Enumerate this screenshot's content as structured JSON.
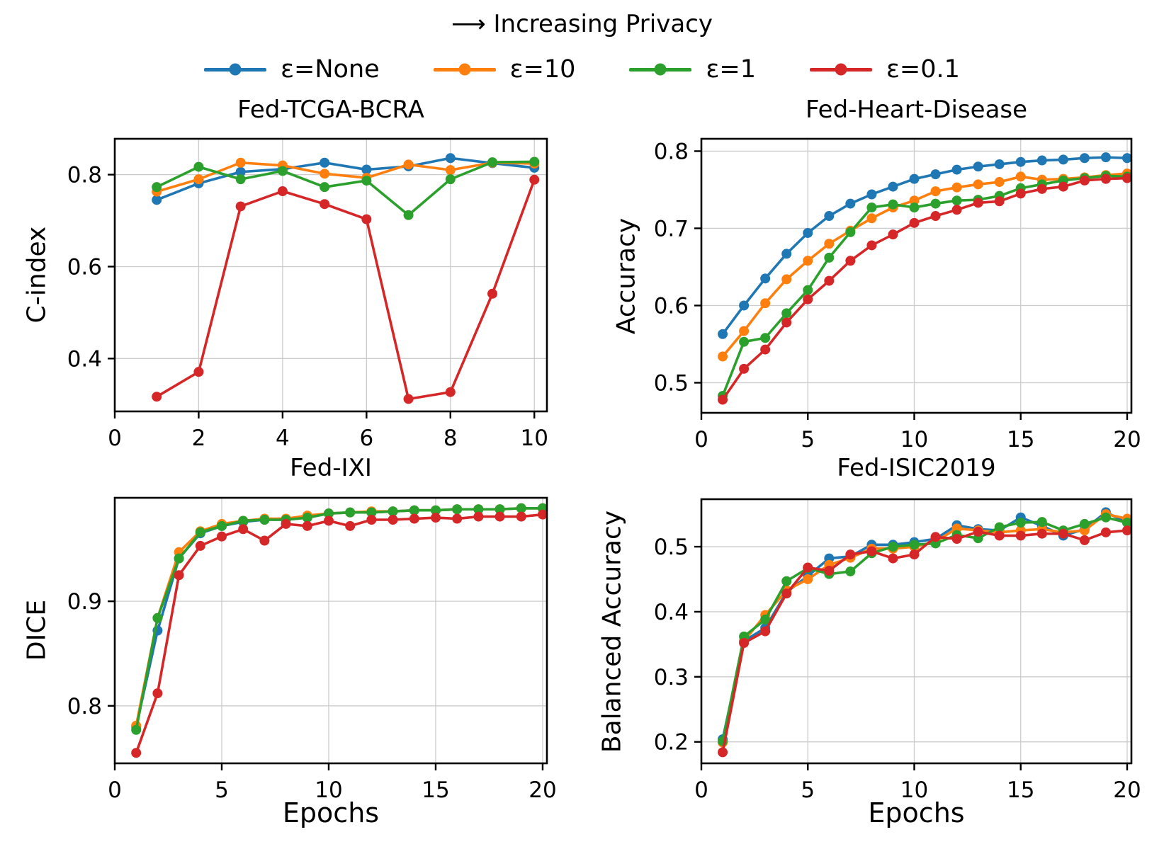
{
  "figure": {
    "header_title": "⟶ Increasing Privacy",
    "legend": [
      {
        "label": "ε=None",
        "color": "#1f77b4"
      },
      {
        "label": "ε=10",
        "color": "#ff7f0e"
      },
      {
        "label": "ε=1",
        "color": "#2ca02c"
      },
      {
        "label": "ε=0.1",
        "color": "#d62728"
      }
    ],
    "grid_color": "#cccccc",
    "spine_color": "#000000",
    "background": "#ffffff"
  },
  "chart_data": [
    {
      "type": "line",
      "title": "Fed-TCGA-BCRA",
      "xlabel": "",
      "ylabel": "C-index",
      "x": [
        1,
        2,
        3,
        4,
        5,
        6,
        7,
        8,
        9,
        10
      ],
      "xticks": [
        0,
        2,
        4,
        6,
        8,
        10
      ],
      "yticks": [
        0.4,
        0.6,
        0.8
      ],
      "xlim": [
        0,
        10.3
      ],
      "ylim": [
        0.285,
        0.878
      ],
      "grid": true,
      "series": [
        {
          "name": "ε=None",
          "color": "#1f77b4",
          "values": [
            0.745,
            0.781,
            0.806,
            0.812,
            0.826,
            0.811,
            0.818,
            0.836,
            0.825,
            0.815
          ]
        },
        {
          "name": "ε=10",
          "color": "#ff7f0e",
          "values": [
            0.763,
            0.79,
            0.826,
            0.82,
            0.802,
            0.793,
            0.822,
            0.81,
            0.826,
            0.824
          ]
        },
        {
          "name": "ε=1",
          "color": "#2ca02c",
          "values": [
            0.773,
            0.817,
            0.79,
            0.808,
            0.773,
            0.787,
            0.712,
            0.79,
            0.827,
            0.828
          ]
        },
        {
          "name": "ε=0.1",
          "color": "#d62728",
          "values": [
            0.317,
            0.371,
            0.731,
            0.764,
            0.736,
            0.703,
            0.312,
            0.327,
            0.541,
            0.789
          ]
        }
      ]
    },
    {
      "type": "line",
      "title": "Fed-Heart-Disease",
      "xlabel": "",
      "ylabel": "Accuracy",
      "x": [
        1,
        2,
        3,
        4,
        5,
        6,
        7,
        8,
        9,
        10,
        11,
        12,
        13,
        14,
        15,
        16,
        17,
        18,
        19,
        20
      ],
      "xticks": [
        0,
        5,
        10,
        15,
        20
      ],
      "yticks": [
        0.5,
        0.6,
        0.7,
        0.8
      ],
      "xlim": [
        0,
        20.2
      ],
      "ylim": [
        0.461,
        0.816
      ],
      "grid": true,
      "series": [
        {
          "name": "ε=None",
          "color": "#1f77b4",
          "values": [
            0.563,
            0.6,
            0.635,
            0.667,
            0.694,
            0.716,
            0.732,
            0.744,
            0.754,
            0.764,
            0.77,
            0.776,
            0.78,
            0.783,
            0.786,
            0.788,
            0.789,
            0.791,
            0.792,
            0.791
          ]
        },
        {
          "name": "ε=10",
          "color": "#ff7f0e",
          "values": [
            0.534,
            0.567,
            0.603,
            0.634,
            0.658,
            0.68,
            0.697,
            0.713,
            0.727,
            0.736,
            0.748,
            0.753,
            0.757,
            0.76,
            0.767,
            0.763,
            0.764,
            0.766,
            0.769,
            0.771
          ]
        },
        {
          "name": "ε=1",
          "color": "#2ca02c",
          "values": [
            0.483,
            0.553,
            0.558,
            0.59,
            0.62,
            0.662,
            0.695,
            0.727,
            0.731,
            0.727,
            0.732,
            0.736,
            0.737,
            0.742,
            0.752,
            0.757,
            0.762,
            0.765,
            0.768,
            0.767
          ]
        },
        {
          "name": "ε=0.1",
          "color": "#d62728",
          "values": [
            0.478,
            0.518,
            0.543,
            0.578,
            0.608,
            0.632,
            0.658,
            0.678,
            0.692,
            0.707,
            0.716,
            0.724,
            0.733,
            0.735,
            0.745,
            0.751,
            0.754,
            0.762,
            0.764,
            0.765
          ]
        }
      ]
    },
    {
      "type": "line",
      "title": "Fed-IXI",
      "xlabel": "Epochs",
      "ylabel": "DICE",
      "x": [
        1,
        2,
        3,
        4,
        5,
        6,
        7,
        8,
        9,
        10,
        11,
        12,
        13,
        14,
        15,
        16,
        17,
        18,
        19,
        20
      ],
      "xticks": [
        0,
        5,
        10,
        15,
        20
      ],
      "yticks": [
        0.8,
        0.9
      ],
      "xlim": [
        0,
        20.2
      ],
      "ylim": [
        0.745,
        0.999
      ],
      "grid": true,
      "series": [
        {
          "name": "ε=None",
          "color": "#1f77b4",
          "values": [
            0.78,
            0.872,
            0.941,
            0.965,
            0.972,
            0.976,
            0.978,
            0.978,
            0.98,
            0.984,
            0.985,
            0.985,
            0.986,
            0.987,
            0.987,
            0.988,
            0.988,
            0.988,
            0.989,
            0.989
          ]
        },
        {
          "name": "ε=10",
          "color": "#ff7f0e",
          "values": [
            0.781,
            0.884,
            0.947,
            0.967,
            0.974,
            0.977,
            0.979,
            0.979,
            0.982,
            0.984,
            0.985,
            0.986,
            0.986,
            0.987,
            0.987,
            0.988,
            0.988,
            0.988,
            0.989,
            0.989
          ]
        },
        {
          "name": "ε=1",
          "color": "#2ca02c",
          "values": [
            0.777,
            0.884,
            0.941,
            0.966,
            0.972,
            0.977,
            0.978,
            0.978,
            0.98,
            0.984,
            0.985,
            0.985,
            0.986,
            0.987,
            0.987,
            0.988,
            0.988,
            0.988,
            0.989,
            0.989
          ]
        },
        {
          "name": "ε=0.1",
          "color": "#d62728",
          "values": [
            0.755,
            0.812,
            0.925,
            0.953,
            0.962,
            0.969,
            0.958,
            0.974,
            0.972,
            0.977,
            0.972,
            0.978,
            0.978,
            0.979,
            0.98,
            0.979,
            0.981,
            0.981,
            0.981,
            0.983
          ]
        }
      ]
    },
    {
      "type": "line",
      "title": "Fed-ISIC2019",
      "xlabel": "Epochs",
      "ylabel": "Balanced Accuracy",
      "x": [
        1,
        2,
        3,
        4,
        5,
        6,
        7,
        8,
        9,
        10,
        11,
        12,
        13,
        14,
        15,
        16,
        17,
        18,
        19,
        20
      ],
      "xticks": [
        0,
        5,
        10,
        15,
        20
      ],
      "yticks": [
        0.2,
        0.3,
        0.4,
        0.5
      ],
      "xlim": [
        0,
        20.2
      ],
      "ylim": [
        0.167,
        0.573
      ],
      "grid": true,
      "series": [
        {
          "name": "ε=None",
          "color": "#1f77b4",
          "values": [
            0.204,
            0.355,
            0.375,
            0.43,
            0.455,
            0.482,
            0.485,
            0.503,
            0.503,
            0.507,
            0.512,
            0.533,
            0.527,
            0.525,
            0.545,
            0.532,
            0.517,
            0.527,
            0.553,
            0.537
          ]
        },
        {
          "name": "ε=10",
          "color": "#ff7f0e",
          "values": [
            0.199,
            0.355,
            0.395,
            0.433,
            0.45,
            0.472,
            0.483,
            0.497,
            0.497,
            0.5,
            0.508,
            0.528,
            0.525,
            0.522,
            0.525,
            0.527,
            0.522,
            0.525,
            0.55,
            0.543
          ]
        },
        {
          "name": "ε=1",
          "color": "#2ca02c",
          "values": [
            0.201,
            0.362,
            0.388,
            0.447,
            0.467,
            0.458,
            0.462,
            0.49,
            0.5,
            0.503,
            0.505,
            0.518,
            0.513,
            0.53,
            0.537,
            0.538,
            0.525,
            0.535,
            0.545,
            0.537
          ]
        },
        {
          "name": "ε=0.1",
          "color": "#d62728",
          "values": [
            0.184,
            0.352,
            0.37,
            0.428,
            0.468,
            0.463,
            0.488,
            0.493,
            0.482,
            0.488,
            0.515,
            0.512,
            0.523,
            0.517,
            0.517,
            0.52,
            0.52,
            0.51,
            0.522,
            0.525
          ]
        }
      ]
    }
  ]
}
